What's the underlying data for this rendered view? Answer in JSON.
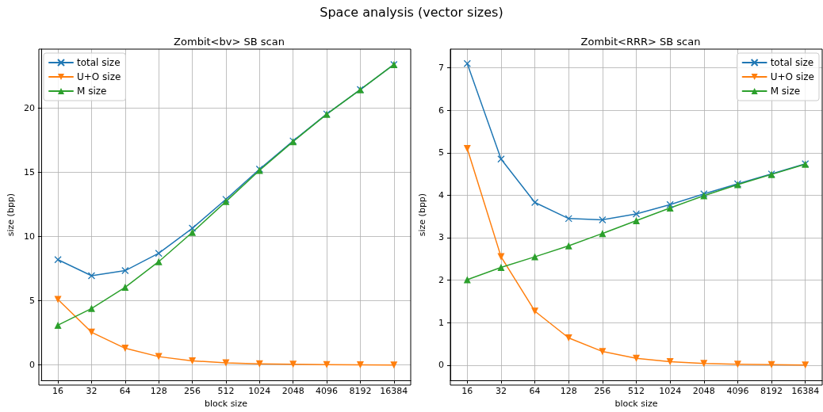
{
  "chart_data": [
    {
      "type": "line",
      "title": "Zombit<bv> SB scan",
      "xlabel": "block size",
      "ylabel": "size (bpp)",
      "annotations": [
        "Space analysis (vector sizes)"
      ],
      "categories": [
        "16",
        "32",
        "64",
        "128",
        "256",
        "512",
        "1024",
        "2048",
        "4096",
        "8192",
        "16384"
      ],
      "series": [
        {
          "name": "total size",
          "color": "#1f77b4",
          "marker": "cross",
          "values": [
            8.2,
            6.95,
            7.35,
            8.7,
            10.65,
            12.9,
            15.25,
            17.45,
            19.55,
            21.45,
            23.4
          ]
        },
        {
          "name": "U+O size",
          "color": "#ff7f0e",
          "marker": "triangle_down",
          "values": [
            5.1,
            2.55,
            1.3,
            0.65,
            0.32,
            0.17,
            0.09,
            0.05,
            0.02,
            0.01,
            0.0
          ]
        },
        {
          "name": "M size",
          "color": "#2ca02c",
          "marker": "triangle",
          "values": [
            3.1,
            4.4,
            6.05,
            8.05,
            10.33,
            12.73,
            15.16,
            17.4,
            19.53,
            21.44,
            23.4
          ]
        }
      ],
      "ylim": [
        -1.2,
        24.6
      ],
      "yticks": [
        0,
        5,
        10,
        15,
        20
      ],
      "grid": true,
      "legend": "top left"
    },
    {
      "type": "line",
      "title": "Zombit<RRR> SB scan",
      "xlabel": "block size",
      "ylabel": "size (bpp)",
      "categories": [
        "16",
        "32",
        "64",
        "128",
        "256",
        "512",
        "1024",
        "2048",
        "4096",
        "8192",
        "16384"
      ],
      "series": [
        {
          "name": "total size",
          "color": "#1f77b4",
          "marker": "cross",
          "values": [
            7.1,
            4.85,
            3.83,
            3.45,
            3.42,
            3.56,
            3.78,
            4.03,
            4.27,
            4.5,
            4.74
          ]
        },
        {
          "name": "U+O size",
          "color": "#ff7f0e",
          "marker": "triangle_down",
          "values": [
            5.1,
            2.55,
            1.27,
            0.64,
            0.32,
            0.16,
            0.08,
            0.04,
            0.02,
            0.01,
            0.0
          ]
        },
        {
          "name": "M size",
          "color": "#2ca02c",
          "marker": "triangle",
          "values": [
            2.01,
            2.3,
            2.55,
            2.81,
            3.1,
            3.4,
            3.7,
            3.99,
            4.25,
            4.49,
            4.73
          ]
        }
      ],
      "ylim": [
        -0.36,
        7.44
      ],
      "yticks": [
        0,
        1,
        2,
        3,
        4,
        5,
        6,
        7
      ],
      "grid": true,
      "legend": "top right"
    }
  ]
}
